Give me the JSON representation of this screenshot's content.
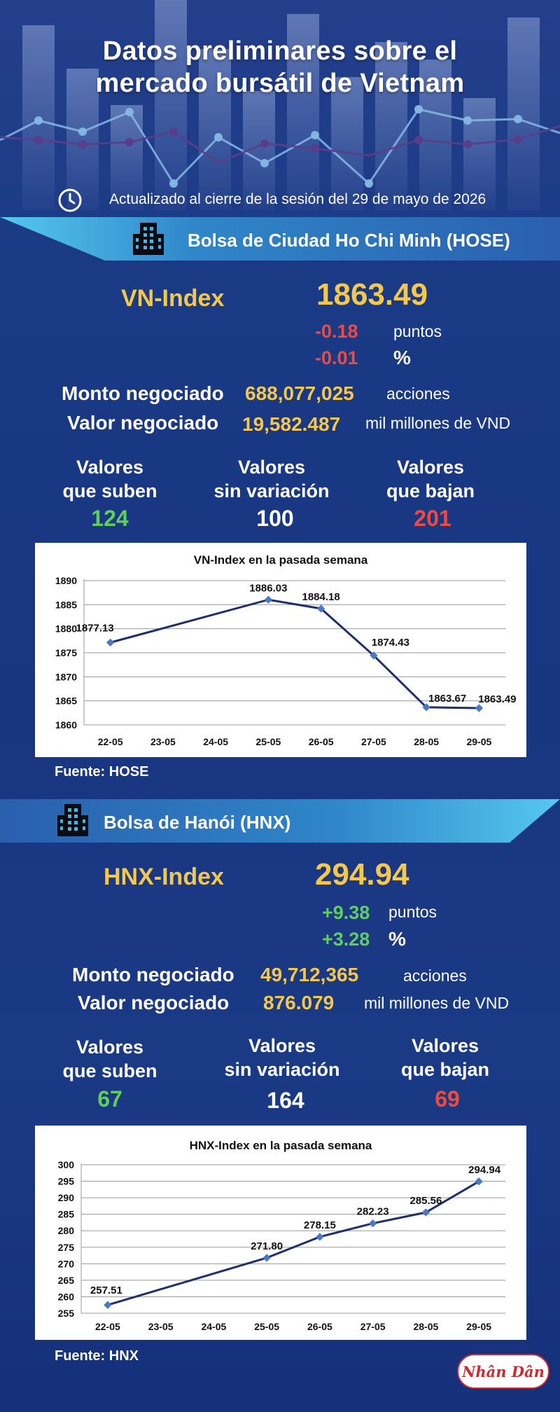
{
  "header": {
    "title_line1": "Datos preliminares sobre el",
    "title_line2": "mercado bursátil de Vietnam",
    "updated": "Actualizado al cierre de la sesión del 29 de mayo de 2026"
  },
  "hose": {
    "banner": "Bolsa de Ciudad Ho Chi Minh (HOSE)",
    "index_name": "VN-Index",
    "index_value": "1863.49",
    "change_points": "-0.18",
    "change_points_unit": "puntos",
    "change_percent": "-0.01",
    "change_percent_unit": "%",
    "volume_label": "Monto negociado",
    "volume_value": "688,077,025",
    "volume_unit": "acciones",
    "value_label": "Valor negociado",
    "value_value": "19,582.487",
    "value_unit": "mil millones de VND",
    "up_label_1": "Valores",
    "up_label_2": "que suben",
    "up_count": "124",
    "flat_label_1": "Valores",
    "flat_label_2": "sin variación",
    "flat_count": "100",
    "down_label_1": "Valores",
    "down_label_2": "que bajan",
    "down_count": "201",
    "source": "Fuente: HOSE"
  },
  "hnx": {
    "banner": "Bolsa de Hanói (HNX)",
    "index_name": "HNX-Index",
    "index_value": "294.94",
    "change_points": "+9.38",
    "change_points_unit": "puntos",
    "change_percent": "+3.28",
    "change_percent_unit": "%",
    "volume_label": "Monto negociado",
    "volume_value": "49,712,365",
    "volume_unit": "acciones",
    "value_label": "Valor negociado",
    "value_value": "876.079",
    "value_unit": "mil millones de VND",
    "up_label_1": "Valores",
    "up_label_2": "que suben",
    "up_count": "67",
    "flat_label_1": "Valores",
    "flat_label_2": "sin variación",
    "flat_count": "164",
    "down_label_1": "Valores",
    "down_label_2": "que bajan",
    "down_count": "69",
    "source": "Fuente:  HNX"
  },
  "logo_text": "Nhân Dân",
  "colors": {
    "accent_yellow": "#f5c84b",
    "up_green": "#5fcf5a",
    "down_red": "#f04a3e",
    "line_navy": "#1f2f6b",
    "banner_cyan": "#3fb6e6"
  },
  "icons": [
    "clock-icon",
    "building-icon"
  ],
  "chart_data": [
    {
      "type": "line",
      "title": "VN-Index en la pasada semana",
      "categories": [
        "22-05",
        "23-05",
        "24-05",
        "25-05",
        "26-05",
        "27-05",
        "28-05",
        "29-05"
      ],
      "x": [
        "22-05",
        "25-05",
        "26-05",
        "27-05",
        "28-05",
        "29-05"
      ],
      "values": [
        1877.13,
        1886.03,
        1884.18,
        1874.43,
        1863.67,
        1863.49
      ],
      "labels": [
        "1877.13",
        "1886.03",
        "1884.18",
        "1874.43",
        "1863.67",
        "1863.49"
      ],
      "yticks": [
        "1890",
        "1885",
        "1880",
        "1875",
        "1870",
        "1865",
        "1860"
      ],
      "ylim": [
        1860,
        1890
      ],
      "grid": true
    },
    {
      "type": "line",
      "title": "HNX-Index en la pasada semana",
      "categories": [
        "22-05",
        "23-05",
        "24-05",
        "25-05",
        "26-05",
        "27-05",
        "28-05",
        "29-05"
      ],
      "x": [
        "22-05",
        "25-05",
        "26-05",
        "27-05",
        "28-05",
        "29-05"
      ],
      "values": [
        257.51,
        271.8,
        278.15,
        282.23,
        285.56,
        294.94
      ],
      "labels": [
        "257.51",
        "271.80",
        "278.15",
        "282.23",
        "285.56",
        "294.94"
      ],
      "yticks": [
        "300",
        "295",
        "290",
        "285",
        "280",
        "275",
        "270",
        "265",
        "260",
        "255"
      ],
      "ylim": [
        255,
        300
      ],
      "grid": true
    }
  ]
}
